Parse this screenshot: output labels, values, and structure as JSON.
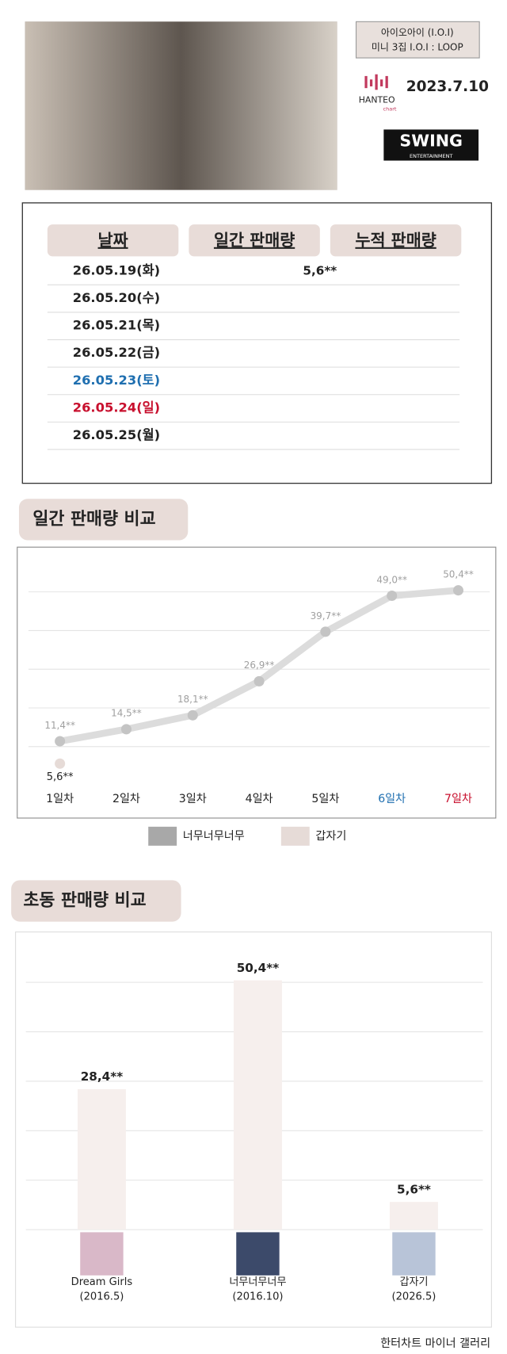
{
  "header": {
    "artist": "아이오아이 (I.O.I)",
    "album": "미니 3집 I.O.I : LOOP",
    "chart_brand": "HANTEO",
    "chart_sub": "chart",
    "date": "2023.7.10",
    "label_brand": "SWING",
    "label_sub": "ENTERTAINMENT"
  },
  "table": {
    "columns": [
      "날짜",
      "일간 판매량",
      "누적 판매량"
    ],
    "rows": [
      {
        "date": "26.05.19(화)",
        "daily": "5,6**"
      },
      {
        "date": "26.05.20(수)"
      },
      {
        "date": "26.05.21(목)"
      },
      {
        "date": "26.05.22(금)"
      },
      {
        "date": "26.05.23(토)",
        "color": "#1f6fb0"
      },
      {
        "date": "26.05.24(일)",
        "color": "#c8102e"
      },
      {
        "date": "26.05.25(월)"
      }
    ]
  },
  "chart_data": [
    {
      "type": "line",
      "title": "일간 판매량 비교",
      "categories": [
        "1일차",
        "2일차",
        "3일차",
        "4일차",
        "5일차",
        "6일차",
        "7일차"
      ],
      "category_colors": [
        null,
        null,
        null,
        null,
        null,
        "#1f6fb0",
        "#c8102e"
      ],
      "series": [
        {
          "name": "너무너무너무",
          "color": "#c4c4c4",
          "values": [
            11.4,
            14.5,
            18.1,
            26.9,
            39.7,
            49.0,
            50.4
          ],
          "value_labels": [
            "11,4**",
            "14,5**",
            "18,1**",
            "26,9**",
            "39,7**",
            "49,0**",
            "50,4**"
          ]
        },
        {
          "name": "갑자기",
          "color": "#e6dbd7",
          "values": [
            5.6,
            null,
            null,
            null,
            null,
            null,
            null
          ],
          "value_labels": [
            "5,6**",
            null,
            null,
            null,
            null,
            null,
            null
          ]
        }
      ],
      "ylim": [
        0,
        58
      ],
      "yticks": [
        10,
        20,
        30,
        40,
        50
      ],
      "grid": true,
      "legend": "bottom"
    },
    {
      "type": "bar",
      "title": "초동 판매량 비교",
      "categories": [
        "Dream Girls",
        "너무너무너무",
        "갑자기"
      ],
      "release": [
        "(2016.5)",
        "(2016.10)",
        "(2026.5)"
      ],
      "values": [
        28.4,
        50.4,
        5.6
      ],
      "value_labels": [
        "28,4**",
        "50,4**",
        "5,6**"
      ],
      "color": "#f6efed",
      "ylim": [
        0,
        60
      ],
      "yticks": [
        0,
        10,
        20,
        30,
        40,
        50
      ],
      "grid": true
    }
  ],
  "footer": "한터차트 마이너 갤러리"
}
